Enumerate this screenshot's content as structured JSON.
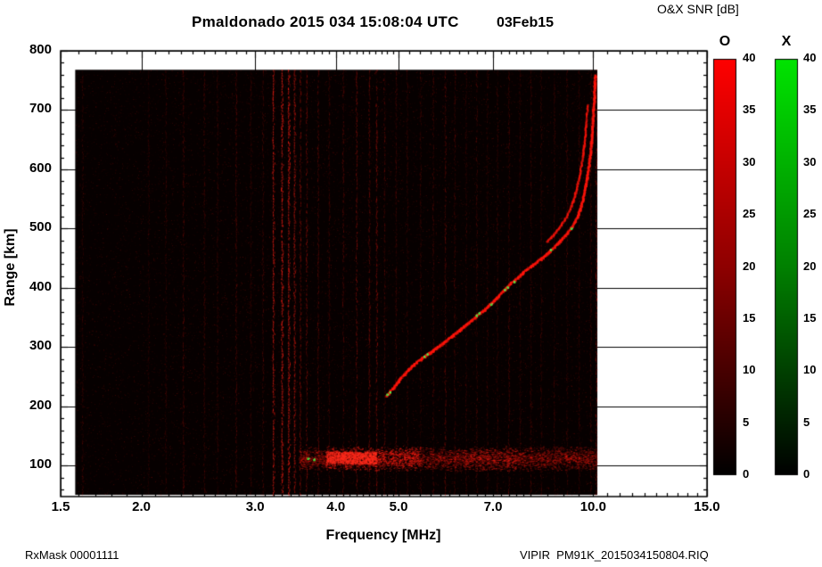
{
  "header": {
    "title": "Pmaldonado 2015 034 15:08:04 UTC",
    "date": "03Feb15"
  },
  "footer": {
    "left": "RxMask 00001111",
    "right": "VIPIR  PM91K_2015034150804.RIQ"
  },
  "colorbar": {
    "title": "O&X SNR [dB]",
    "o_label": "O",
    "x_label": "X",
    "ticks": [
      0,
      5,
      10,
      15,
      20,
      25,
      30,
      35,
      40
    ],
    "min": 0,
    "max": 40,
    "o_colors": [
      "#000000",
      "#8e0000",
      "#ff0000"
    ],
    "x_colors": [
      "#000000",
      "#008000",
      "#00e400"
    ]
  },
  "chart_data": {
    "type": "heatmap",
    "title": "Pmaldonado 2015 034 15:08:04 UTC 03Feb15",
    "xlabel": "Frequency [MHz]",
    "ylabel": "Range [km]",
    "x_scale": "log",
    "xlim": [
      1.5,
      15.0
    ],
    "ylim": [
      48,
      800
    ],
    "x_ticks": [
      1.5,
      2.0,
      3.0,
      4.0,
      5.0,
      7.0,
      10.0,
      15.0
    ],
    "x_tick_labels": [
      "1.5",
      "2.0",
      "3.0",
      "4.0",
      "5.0",
      "7.0",
      "10.0",
      "15.0"
    ],
    "x_minor_ticks": [
      1.6,
      1.7,
      1.8,
      1.9,
      2.1,
      2.2,
      2.3,
      2.4,
      2.5,
      2.6,
      2.7,
      2.8,
      2.9,
      3.1,
      3.2,
      3.3,
      3.4,
      3.5,
      3.6,
      3.7,
      3.8,
      3.9,
      4.1,
      4.2,
      4.3,
      4.4,
      4.5,
      4.6,
      4.7,
      4.8,
      4.9,
      5.2,
      5.4,
      5.6,
      5.8,
      6.0,
      6.2,
      6.4,
      6.6,
      6.8,
      7.2,
      7.4,
      7.6,
      7.8,
      8.0,
      8.5,
      9.0,
      9.5,
      10.5,
      11.0,
      11.5,
      12.0,
      12.5,
      13.0,
      13.5,
      14.0,
      14.5
    ],
    "y_ticks": [
      100,
      200,
      300,
      400,
      500,
      600,
      700,
      800
    ],
    "y_minor_step": 20,
    "grid": true,
    "snr_label": "O&X SNR [dB]",
    "snr_range": [
      0,
      40
    ],
    "background_color": "#060000",
    "echo_color": "#ff1a0d",
    "x_mode_color": "#3ce63c",
    "swept_extent": {
      "freq_mhz": [
        1.58,
        10.15
      ],
      "range_km": [
        51,
        768
      ]
    },
    "o_trace_points": [
      [
        4.78,
        218
      ],
      [
        4.9,
        232
      ],
      [
        5.05,
        250
      ],
      [
        5.2,
        265
      ],
      [
        5.35,
        277
      ],
      [
        5.5,
        286
      ],
      [
        5.65,
        295
      ],
      [
        5.85,
        307
      ],
      [
        6.05,
        320
      ],
      [
        6.25,
        332
      ],
      [
        6.45,
        344
      ],
      [
        6.65,
        356
      ],
      [
        6.85,
        368
      ],
      [
        7.05,
        381
      ],
      [
        7.25,
        395
      ],
      [
        7.45,
        408
      ],
      [
        7.65,
        419
      ],
      [
        7.85,
        430
      ],
      [
        8.1,
        441
      ],
      [
        8.35,
        452
      ],
      [
        8.6,
        464
      ],
      [
        8.85,
        478
      ],
      [
        9.1,
        492
      ],
      [
        9.3,
        506
      ],
      [
        9.45,
        522
      ],
      [
        9.58,
        540
      ],
      [
        9.68,
        562
      ],
      [
        9.78,
        588
      ],
      [
        9.86,
        615
      ],
      [
        9.92,
        645
      ],
      [
        9.97,
        678
      ],
      [
        10.01,
        710
      ],
      [
        10.04,
        740
      ],
      [
        10.06,
        760
      ]
    ],
    "x_trace_points": [
      [
        8.45,
        478
      ],
      [
        8.7,
        492
      ],
      [
        8.9,
        506
      ],
      [
        9.1,
        522
      ],
      [
        9.25,
        540
      ],
      [
        9.38,
        562
      ],
      [
        9.5,
        588
      ],
      [
        9.6,
        615
      ],
      [
        9.68,
        645
      ],
      [
        9.74,
        678
      ],
      [
        9.79,
        710
      ]
    ],
    "green_spots": [
      [
        4.8,
        220
      ],
      [
        4.85,
        224
      ],
      [
        5.48,
        284
      ],
      [
        5.54,
        288
      ],
      [
        6.6,
        353
      ],
      [
        6.66,
        357
      ],
      [
        6.95,
        372
      ],
      [
        7.3,
        397
      ],
      [
        7.37,
        401
      ],
      [
        7.55,
        410
      ],
      [
        8.6,
        464
      ],
      [
        9.25,
        500
      ],
      [
        3.62,
        112
      ],
      [
        3.7,
        110
      ]
    ],
    "rfi_lines": [
      {
        "f": 1.62,
        "i": 0.2
      },
      {
        "f": 2.05,
        "i": 0.15
      },
      {
        "f": 2.18,
        "i": 0.2
      },
      {
        "f": 2.32,
        "i": 0.3
      },
      {
        "f": 2.5,
        "i": 0.25
      },
      {
        "f": 2.62,
        "i": 0.2
      },
      {
        "f": 2.8,
        "i": 0.3
      },
      {
        "f": 2.95,
        "i": 0.2
      },
      {
        "f": 3.08,
        "i": 0.25
      },
      {
        "f": 3.2,
        "i": 0.7
      },
      {
        "f": 3.3,
        "i": 0.85
      },
      {
        "f": 3.38,
        "i": 0.8
      },
      {
        "f": 3.45,
        "i": 0.6
      },
      {
        "f": 3.52,
        "i": 0.5
      },
      {
        "f": 3.6,
        "i": 0.45
      },
      {
        "f": 3.75,
        "i": 0.3
      },
      {
        "f": 3.9,
        "i": 0.25
      },
      {
        "f": 4.1,
        "i": 0.3
      },
      {
        "f": 4.3,
        "i": 0.45
      },
      {
        "f": 4.5,
        "i": 0.4
      },
      {
        "f": 4.62,
        "i": 0.5
      },
      {
        "f": 4.75,
        "i": 0.3
      },
      {
        "f": 4.95,
        "i": 0.25
      },
      {
        "f": 5.15,
        "i": 0.2
      },
      {
        "f": 5.4,
        "i": 0.2
      },
      {
        "f": 5.65,
        "i": 0.25
      },
      {
        "f": 5.9,
        "i": 0.35
      },
      {
        "f": 6.1,
        "i": 0.25
      },
      {
        "f": 6.35,
        "i": 0.2
      },
      {
        "f": 6.6,
        "i": 0.25
      },
      {
        "f": 6.85,
        "i": 0.2
      },
      {
        "f": 7.1,
        "i": 0.2
      },
      {
        "f": 7.4,
        "i": 0.25
      },
      {
        "f": 7.7,
        "i": 0.2
      },
      {
        "f": 8.0,
        "i": 0.25
      },
      {
        "f": 8.3,
        "i": 0.2
      },
      {
        "f": 8.7,
        "i": 0.2
      },
      {
        "f": 9.1,
        "i": 0.2
      },
      {
        "f": 9.5,
        "i": 0.2
      },
      {
        "f": 9.9,
        "i": 0.25
      },
      {
        "f": 10.1,
        "i": 0.45
      }
    ],
    "e_region": {
      "freq_mhz": [
        3.5,
        10.1
      ],
      "range_km": [
        95,
        130
      ],
      "enhanced_freq_mhz": [
        3.85,
        5.4
      ]
    },
    "noise": {
      "speckle_count": 30000
    }
  }
}
